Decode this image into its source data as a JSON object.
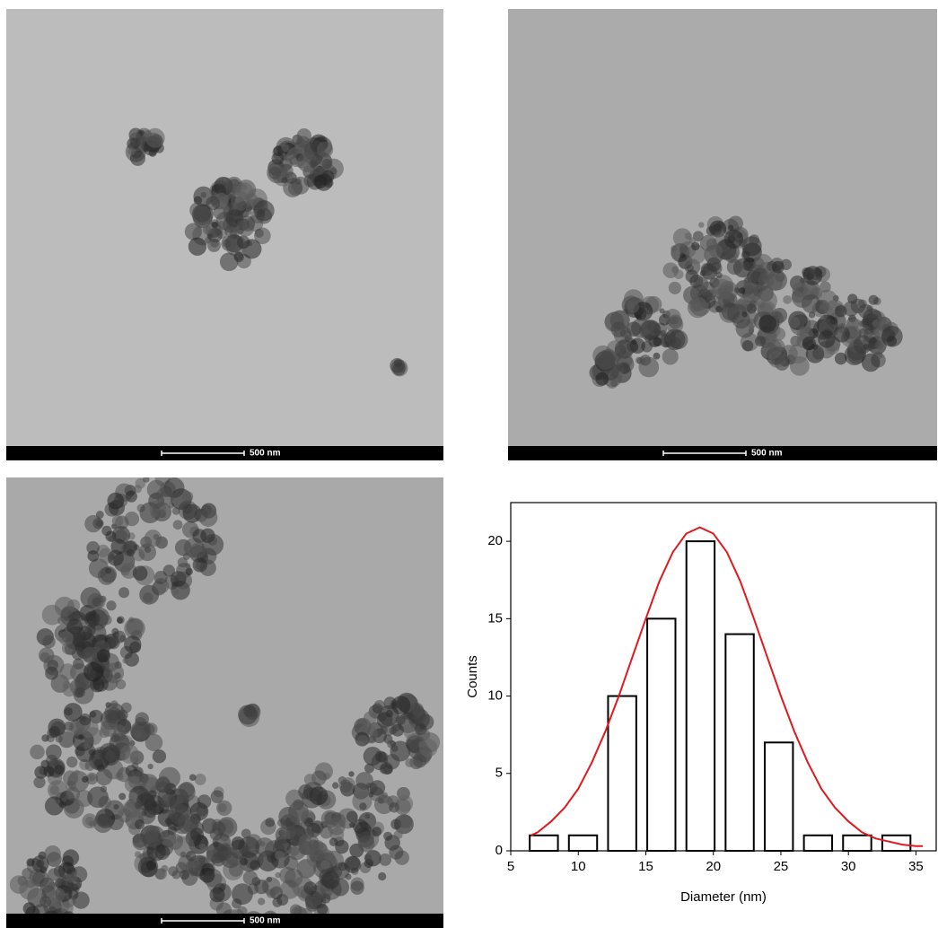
{
  "images": [
    {
      "scale_bar": "500 nm"
    },
    {
      "scale_bar": "500 nm"
    },
    {
      "scale_bar": "500 nm"
    }
  ],
  "chart_data": {
    "type": "histogram",
    "bins": [
      6,
      8.9,
      11.8,
      14.7,
      17.6,
      20.5,
      23.4,
      26.3,
      29.2,
      32.1,
      35
    ],
    "values": [
      1,
      1,
      10,
      15,
      20,
      14,
      7,
      1,
      1,
      1
    ],
    "color": "#000000",
    "fit_curve": {
      "color": "#e0191f",
      "x": [
        6.5,
        7,
        8,
        9,
        10,
        11,
        12,
        13,
        14,
        15,
        16,
        17,
        18,
        19,
        20,
        21,
        22,
        23,
        24,
        25,
        26,
        27,
        28,
        29,
        30,
        31,
        32,
        33,
        34,
        35,
        35.5
      ],
      "values": [
        1.0,
        1.2,
        1.9,
        2.8,
        4.0,
        5.7,
        7.7,
        10.0,
        12.5,
        15.0,
        17.4,
        19.3,
        20.5,
        20.9,
        20.5,
        19.3,
        17.4,
        15.0,
        12.5,
        10.0,
        7.7,
        5.7,
        4.0,
        2.8,
        1.9,
        1.2,
        0.8,
        0.6,
        0.4,
        0.3,
        0.3
      ]
    },
    "xlabel": "Diameter (nm)",
    "ylabel": "Counts",
    "xlim": [
      5,
      36.5
    ],
    "ylim": [
      0,
      22.5
    ],
    "xticks": [
      5,
      10,
      15,
      20,
      25,
      30,
      35
    ],
    "yticks": [
      0,
      5,
      10,
      15,
      20
    ]
  }
}
